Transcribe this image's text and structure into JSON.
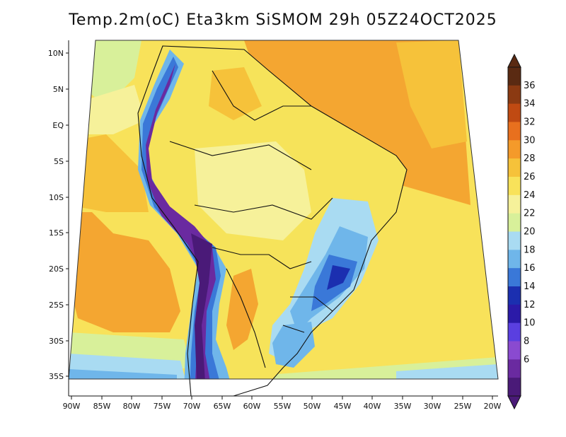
{
  "title": "Temp.2m(oC) Eta3km SiSMOM 29h 05Z24OCT2025",
  "lat_labels": [
    "10N",
    "5N",
    "EQ",
    "5S",
    "10S",
    "15S",
    "20S",
    "25S",
    "30S",
    "35S"
  ],
  "lon_labels": [
    "90W",
    "85W",
    "80W",
    "75W",
    "70W",
    "65W",
    "60W",
    "55W",
    "50W",
    "45W",
    "40W",
    "35W",
    "30W",
    "25W",
    "20W"
  ],
  "colorbar": {
    "ticks": [
      "36",
      "34",
      "32",
      "30",
      "28",
      "26",
      "24",
      "22",
      "20",
      "18",
      "16",
      "14",
      "12",
      "10",
      "8",
      "6"
    ],
    "colors": [
      "#5a2a12",
      "#8b3a12",
      "#c04a12",
      "#e8701e",
      "#f49a2a",
      "#f6c23a",
      "#f8e25a",
      "#f6f19a",
      "#d8f09a",
      "#a9dbf2",
      "#6fb6ea",
      "#3a78d8",
      "#1b2fb0",
      "#2b1aa8",
      "#5a3fe0",
      "#8a4ad0",
      "#6a2aa0",
      "#4a1a78"
    ]
  }
}
